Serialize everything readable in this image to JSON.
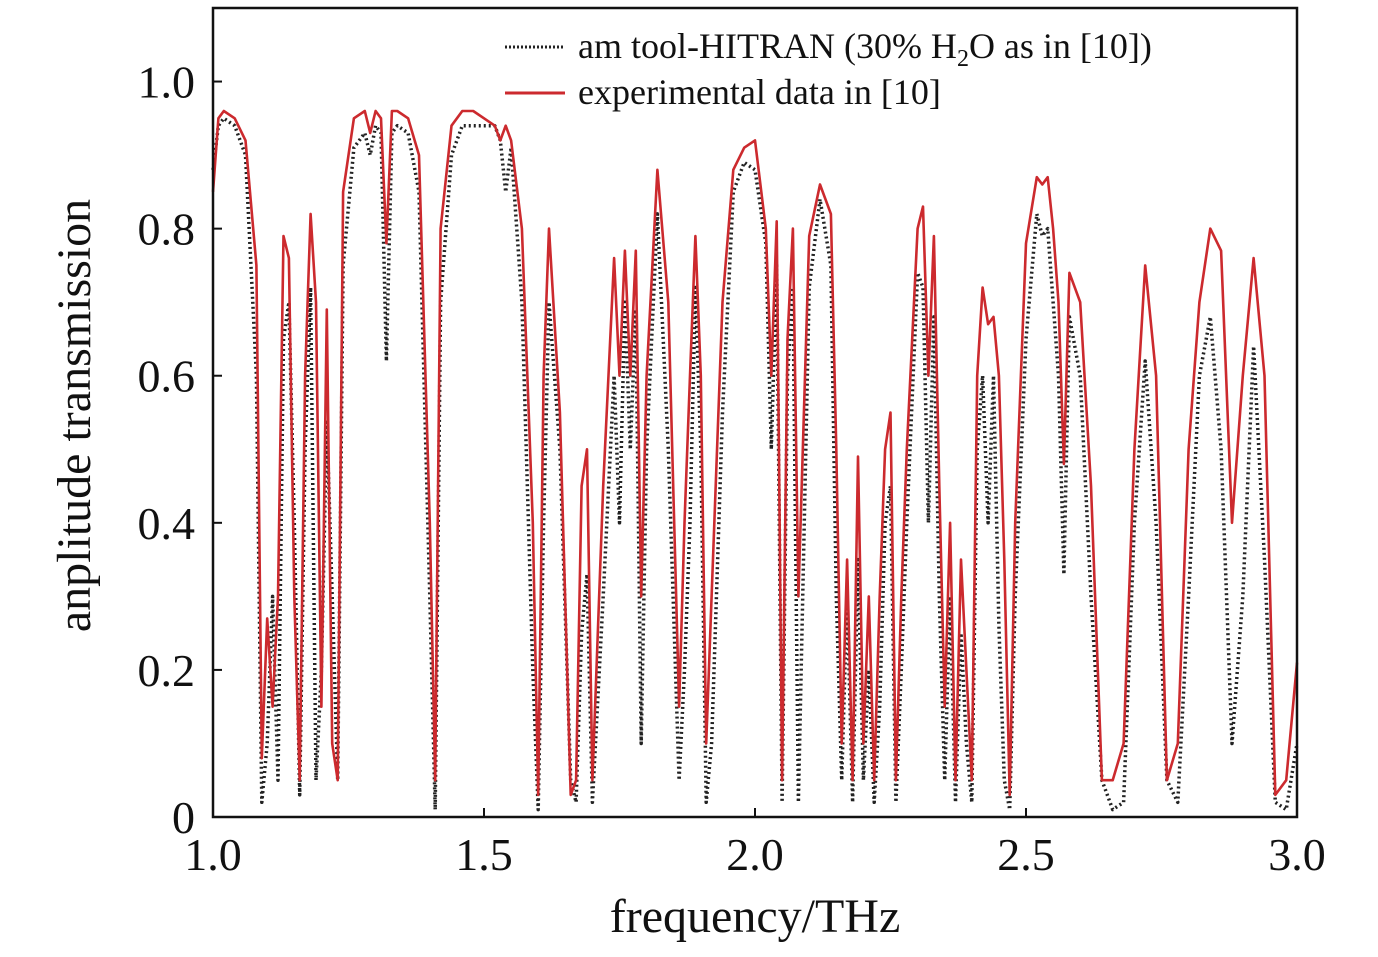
{
  "chart_data": {
    "type": "line",
    "title": "",
    "xlabel": "frequency/THz",
    "ylabel": "anplitude transmission",
    "xlim": [
      1.0,
      3.0
    ],
    "ylim": [
      0,
      1.1
    ],
    "x_ticks": [
      "1.0",
      "1.5",
      "2.0",
      "2.5",
      "3.0"
    ],
    "y_ticks": [
      "0",
      "0.2",
      "0.4",
      "0.6",
      "0.8",
      "1.0"
    ],
    "grid": false,
    "legend": {
      "placement": "top-right",
      "entries": [
        {
          "text_before": "am tool-HITRAN (30% H",
          "subscript": "2",
          "text_after": "O as in [10])"
        },
        {
          "text": "experimental data in [10]"
        }
      ]
    },
    "colors": {
      "hitran": "#222222",
      "experimental": "#cc2a2e",
      "axis": "#111111"
    },
    "series": [
      {
        "key": "hitran",
        "style": "dotted",
        "x": [
          1.0,
          1.01,
          1.02,
          1.04,
          1.06,
          1.08,
          1.09,
          1.1,
          1.11,
          1.12,
          1.13,
          1.14,
          1.15,
          1.16,
          1.17,
          1.18,
          1.19,
          1.2,
          1.21,
          1.22,
          1.23,
          1.24,
          1.26,
          1.28,
          1.29,
          1.3,
          1.31,
          1.32,
          1.33,
          1.34,
          1.36,
          1.38,
          1.4,
          1.41,
          1.42,
          1.44,
          1.46,
          1.48,
          1.5,
          1.52,
          1.53,
          1.54,
          1.55,
          1.57,
          1.59,
          1.6,
          1.61,
          1.62,
          1.64,
          1.66,
          1.67,
          1.68,
          1.69,
          1.7,
          1.72,
          1.74,
          1.75,
          1.76,
          1.77,
          1.78,
          1.79,
          1.8,
          1.82,
          1.84,
          1.86,
          1.87,
          1.88,
          1.89,
          1.9,
          1.91,
          1.92,
          1.94,
          1.96,
          1.98,
          2.0,
          2.02,
          2.03,
          2.04,
          2.05,
          2.06,
          2.07,
          2.08,
          2.1,
          2.12,
          2.14,
          2.15,
          2.16,
          2.17,
          2.18,
          2.19,
          2.2,
          2.21,
          2.22,
          2.23,
          2.24,
          2.25,
          2.26,
          2.27,
          2.28,
          2.3,
          2.31,
          2.32,
          2.33,
          2.34,
          2.35,
          2.36,
          2.37,
          2.38,
          2.39,
          2.4,
          2.41,
          2.42,
          2.43,
          2.44,
          2.45,
          2.46,
          2.47,
          2.48,
          2.5,
          2.52,
          2.53,
          2.54,
          2.55,
          2.56,
          2.57,
          2.58,
          2.6,
          2.62,
          2.64,
          2.66,
          2.68,
          2.7,
          2.72,
          2.74,
          2.76,
          2.78,
          2.8,
          2.82,
          2.84,
          2.86,
          2.88,
          2.9,
          2.92,
          2.94,
          2.96,
          2.98,
          3.0
        ],
        "y": [
          0.88,
          0.94,
          0.95,
          0.94,
          0.9,
          0.6,
          0.02,
          0.1,
          0.3,
          0.05,
          0.65,
          0.7,
          0.4,
          0.03,
          0.5,
          0.72,
          0.05,
          0.2,
          0.54,
          0.3,
          0.05,
          0.75,
          0.91,
          0.93,
          0.9,
          0.94,
          0.93,
          0.62,
          0.93,
          0.94,
          0.93,
          0.85,
          0.3,
          0.01,
          0.7,
          0.9,
          0.94,
          0.94,
          0.94,
          0.94,
          0.92,
          0.85,
          0.91,
          0.7,
          0.2,
          0.01,
          0.4,
          0.7,
          0.5,
          0.05,
          0.02,
          0.25,
          0.33,
          0.02,
          0.3,
          0.6,
          0.4,
          0.7,
          0.5,
          0.69,
          0.1,
          0.5,
          0.82,
          0.5,
          0.05,
          0.2,
          0.4,
          0.72,
          0.5,
          0.02,
          0.1,
          0.55,
          0.85,
          0.89,
          0.88,
          0.78,
          0.5,
          0.75,
          0.02,
          0.6,
          0.72,
          0.02,
          0.72,
          0.84,
          0.75,
          0.3,
          0.05,
          0.3,
          0.02,
          0.35,
          0.05,
          0.2,
          0.02,
          0.15,
          0.4,
          0.45,
          0.02,
          0.2,
          0.4,
          0.74,
          0.72,
          0.4,
          0.68,
          0.3,
          0.05,
          0.3,
          0.02,
          0.25,
          0.1,
          0.02,
          0.5,
          0.6,
          0.4,
          0.6,
          0.26,
          0.05,
          0.01,
          0.3,
          0.65,
          0.82,
          0.79,
          0.8,
          0.7,
          0.6,
          0.33,
          0.68,
          0.6,
          0.3,
          0.05,
          0.01,
          0.02,
          0.4,
          0.62,
          0.4,
          0.05,
          0.02,
          0.3,
          0.6,
          0.68,
          0.5,
          0.1,
          0.3,
          0.64,
          0.35,
          0.02,
          0.01,
          0.1
        ]
      },
      {
        "key": "experimental",
        "style": "solid",
        "x": [
          1.0,
          1.01,
          1.02,
          1.04,
          1.06,
          1.08,
          1.09,
          1.1,
          1.11,
          1.12,
          1.13,
          1.14,
          1.15,
          1.16,
          1.17,
          1.18,
          1.19,
          1.2,
          1.21,
          1.22,
          1.23,
          1.24,
          1.26,
          1.28,
          1.29,
          1.3,
          1.31,
          1.32,
          1.33,
          1.34,
          1.36,
          1.38,
          1.4,
          1.41,
          1.42,
          1.44,
          1.46,
          1.48,
          1.5,
          1.52,
          1.53,
          1.54,
          1.55,
          1.57,
          1.59,
          1.6,
          1.61,
          1.62,
          1.64,
          1.66,
          1.67,
          1.68,
          1.69,
          1.7,
          1.72,
          1.74,
          1.75,
          1.76,
          1.77,
          1.78,
          1.79,
          1.8,
          1.82,
          1.84,
          1.86,
          1.87,
          1.88,
          1.89,
          1.9,
          1.91,
          1.92,
          1.94,
          1.96,
          1.98,
          2.0,
          2.02,
          2.03,
          2.04,
          2.05,
          2.06,
          2.07,
          2.08,
          2.1,
          2.12,
          2.14,
          2.15,
          2.16,
          2.17,
          2.18,
          2.19,
          2.2,
          2.21,
          2.22,
          2.23,
          2.24,
          2.25,
          2.26,
          2.27,
          2.28,
          2.3,
          2.31,
          2.32,
          2.33,
          2.34,
          2.35,
          2.36,
          2.37,
          2.38,
          2.39,
          2.4,
          2.41,
          2.42,
          2.43,
          2.44,
          2.45,
          2.46,
          2.47,
          2.48,
          2.5,
          2.52,
          2.53,
          2.54,
          2.55,
          2.56,
          2.57,
          2.58,
          2.6,
          2.62,
          2.64,
          2.66,
          2.68,
          2.7,
          2.72,
          2.74,
          2.76,
          2.78,
          2.8,
          2.82,
          2.84,
          2.86,
          2.88,
          2.9,
          2.92,
          2.94,
          2.96,
          2.98,
          3.0
        ],
        "y": [
          0.85,
          0.95,
          0.96,
          0.95,
          0.92,
          0.75,
          0.08,
          0.27,
          0.15,
          0.3,
          0.79,
          0.76,
          0.3,
          0.05,
          0.6,
          0.82,
          0.7,
          0.15,
          0.69,
          0.1,
          0.05,
          0.85,
          0.95,
          0.96,
          0.93,
          0.96,
          0.95,
          0.78,
          0.96,
          0.96,
          0.95,
          0.9,
          0.4,
          0.05,
          0.8,
          0.94,
          0.96,
          0.96,
          0.95,
          0.94,
          0.92,
          0.94,
          0.92,
          0.8,
          0.4,
          0.03,
          0.6,
          0.8,
          0.55,
          0.03,
          0.05,
          0.45,
          0.5,
          0.05,
          0.45,
          0.76,
          0.6,
          0.77,
          0.6,
          0.77,
          0.3,
          0.6,
          0.88,
          0.7,
          0.15,
          0.4,
          0.6,
          0.79,
          0.6,
          0.1,
          0.3,
          0.7,
          0.88,
          0.91,
          0.92,
          0.8,
          0.6,
          0.81,
          0.05,
          0.65,
          0.8,
          0.3,
          0.79,
          0.86,
          0.82,
          0.5,
          0.1,
          0.35,
          0.05,
          0.49,
          0.1,
          0.3,
          0.05,
          0.3,
          0.5,
          0.55,
          0.05,
          0.3,
          0.5,
          0.8,
          0.83,
          0.6,
          0.79,
          0.45,
          0.15,
          0.4,
          0.05,
          0.35,
          0.2,
          0.05,
          0.6,
          0.72,
          0.67,
          0.68,
          0.6,
          0.35,
          0.03,
          0.4,
          0.78,
          0.87,
          0.86,
          0.87,
          0.8,
          0.7,
          0.48,
          0.74,
          0.7,
          0.45,
          0.05,
          0.05,
          0.1,
          0.5,
          0.75,
          0.6,
          0.05,
          0.1,
          0.5,
          0.7,
          0.8,
          0.77,
          0.4,
          0.6,
          0.76,
          0.6,
          0.03,
          0.05,
          0.21
        ]
      }
    ]
  }
}
